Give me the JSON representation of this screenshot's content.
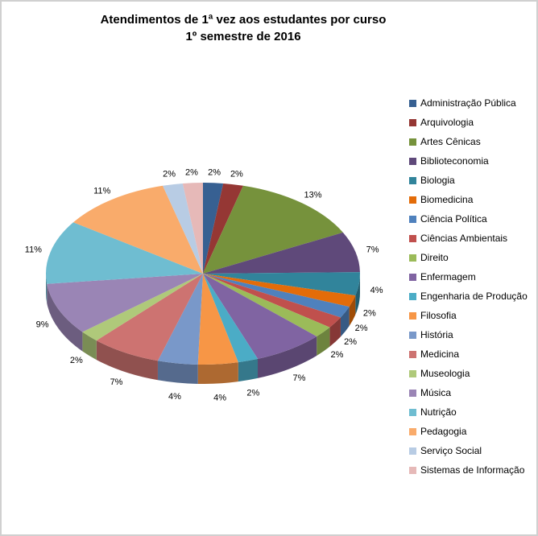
{
  "title": {
    "line1": "Atendimentos de 1ª vez aos estudantes por curso",
    "line2": "1º semestre de 2016"
  },
  "chart_data": {
    "type": "pie",
    "style": "3d-pie",
    "title": "Atendimentos de 1ª vez aos estudantes por curso",
    "subtitle": "1º semestre de 2016",
    "unit": "%",
    "legend_position": "right",
    "data_labels": "percent, outside end",
    "categories": [
      "Administração Pública",
      "Arquivologia",
      "Artes Cênicas",
      "Biblioteconomia",
      "Biologia",
      "Biomedicina",
      "Ciência Política",
      "Ciências Ambientais",
      "Direito",
      "Enfermagem",
      "Engenharia de Produção",
      "Filosofia",
      "História",
      "Medicina",
      "Museologia",
      "Música",
      "Nutrição",
      "Pedagogia",
      "Serviço Social",
      "Sistemas de Informação"
    ],
    "values": [
      2,
      2,
      13,
      7,
      4,
      2,
      2,
      2,
      2,
      7,
      2,
      4,
      4,
      7,
      2,
      9,
      11,
      11,
      2,
      2
    ],
    "colors": [
      "#376092",
      "#953734",
      "#76923C",
      "#5F497A",
      "#31849B",
      "#E36C09",
      "#4F81BD",
      "#C0504D",
      "#9BBB59",
      "#8064A2",
      "#4BACC6",
      "#F79646",
      "#7998C9",
      "#CD7371",
      "#AFC97A",
      "#9A85B5",
      "#6FBDD1",
      "#F9AB6B",
      "#B8CCE4",
      "#E6B9B8"
    ]
  }
}
